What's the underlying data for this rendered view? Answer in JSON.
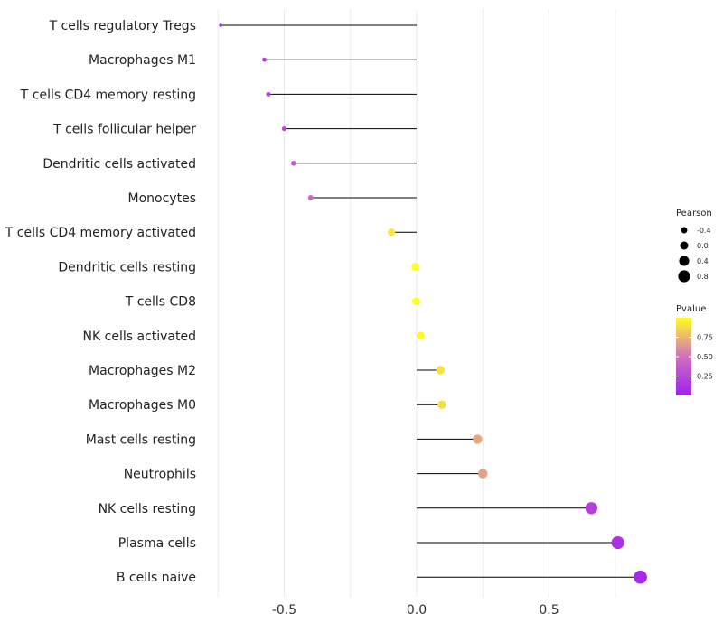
{
  "chart_data": {
    "type": "lollipop",
    "title": "",
    "xlabel": "",
    "ylabel": "",
    "xlim": [
      -0.75,
      0.86
    ],
    "x_ticks": [
      -0.5,
      0.0,
      0.5
    ],
    "x_tick_labels": [
      "-0.5",
      "0.0",
      "0.5"
    ],
    "grid": true,
    "categories": [
      "T cells regulatory  Tregs",
      "Macrophages M1",
      "T cells CD4 memory resting",
      "T cells follicular helper",
      "Dendritic cells activated",
      "Monocytes",
      "T cells CD4 memory activated",
      "Dendritic cells resting",
      "T cells CD8",
      "NK cells activated",
      "Macrophages M2",
      "Macrophages M0",
      "Mast cells resting",
      "Neutrophils",
      "NK cells resting",
      "Plasma cells",
      "B cells naive"
    ],
    "pearson": [
      -0.74,
      -0.575,
      -0.56,
      -0.5,
      -0.465,
      -0.4,
      -0.095,
      -0.005,
      -0.002,
      0.015,
      0.09,
      0.095,
      0.23,
      0.25,
      0.66,
      0.76,
      0.845
    ],
    "pvalue": [
      0.03,
      0.18,
      0.2,
      0.28,
      0.35,
      0.45,
      0.92,
      1.0,
      1.0,
      0.98,
      0.9,
      0.88,
      0.7,
      0.68,
      0.2,
      0.12,
      0.05
    ],
    "legend_size": {
      "title": "Pearson",
      "values": [
        -0.4,
        0.0,
        0.4,
        0.8
      ],
      "labels": [
        "-0.4",
        "0.0",
        "0.4",
        "0.8"
      ]
    },
    "legend_color": {
      "title": "Pvalue",
      "range": [
        0.0,
        1.0
      ],
      "ticks": [
        0.25,
        0.5,
        0.75
      ],
      "tick_labels": [
        "0.25",
        "0.50",
        "0.75"
      ],
      "low_color": "#a020f0",
      "mid_color": "#d070c0",
      "high_color": "#ffff20"
    },
    "legend_position": "right"
  }
}
